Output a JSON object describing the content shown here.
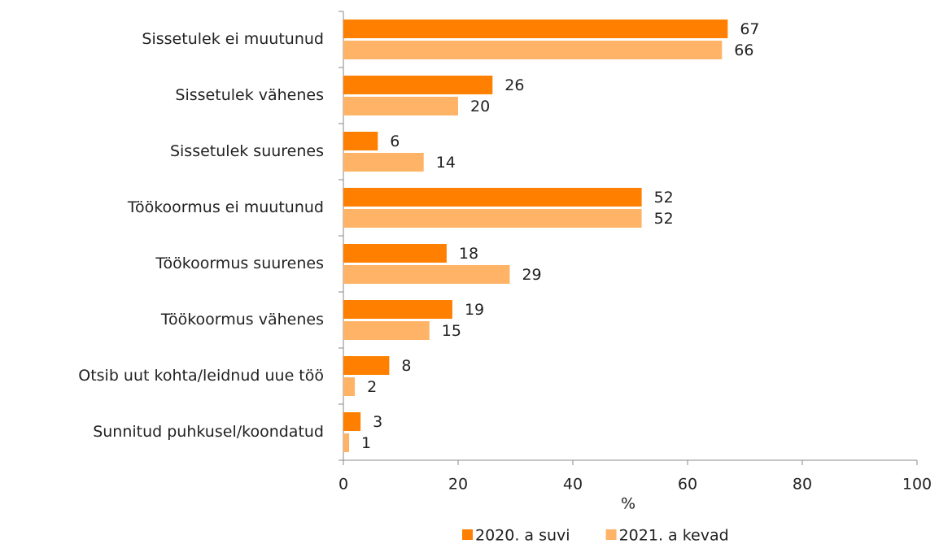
{
  "chart_data": {
    "type": "bar",
    "orientation": "horizontal",
    "categories": [
      "Sissetulek ei muutunud",
      "Sissetulek vähenes",
      "Sissetulek suurenes",
      "Töökoormus ei  muutunud",
      "Töökoormus suurenes",
      "Töökoormus vähenes",
      "Otsib uut kohta/leidnud uue töö",
      "Sunnitud puhkusel/koondatud"
    ],
    "series": [
      {
        "name": "2020. a suvi",
        "color": "#ff8000",
        "values": [
          67,
          26,
          6,
          52,
          18,
          19,
          8,
          3
        ]
      },
      {
        "name": "2021. a kevad",
        "color": "#ffb366",
        "values": [
          66,
          20,
          14,
          52,
          29,
          15,
          2,
          1
        ]
      }
    ],
    "xlim": [
      0,
      100
    ],
    "xticks": [
      0,
      20,
      40,
      60,
      80,
      100
    ],
    "xlabel": "%",
    "legend": "bottom"
  }
}
